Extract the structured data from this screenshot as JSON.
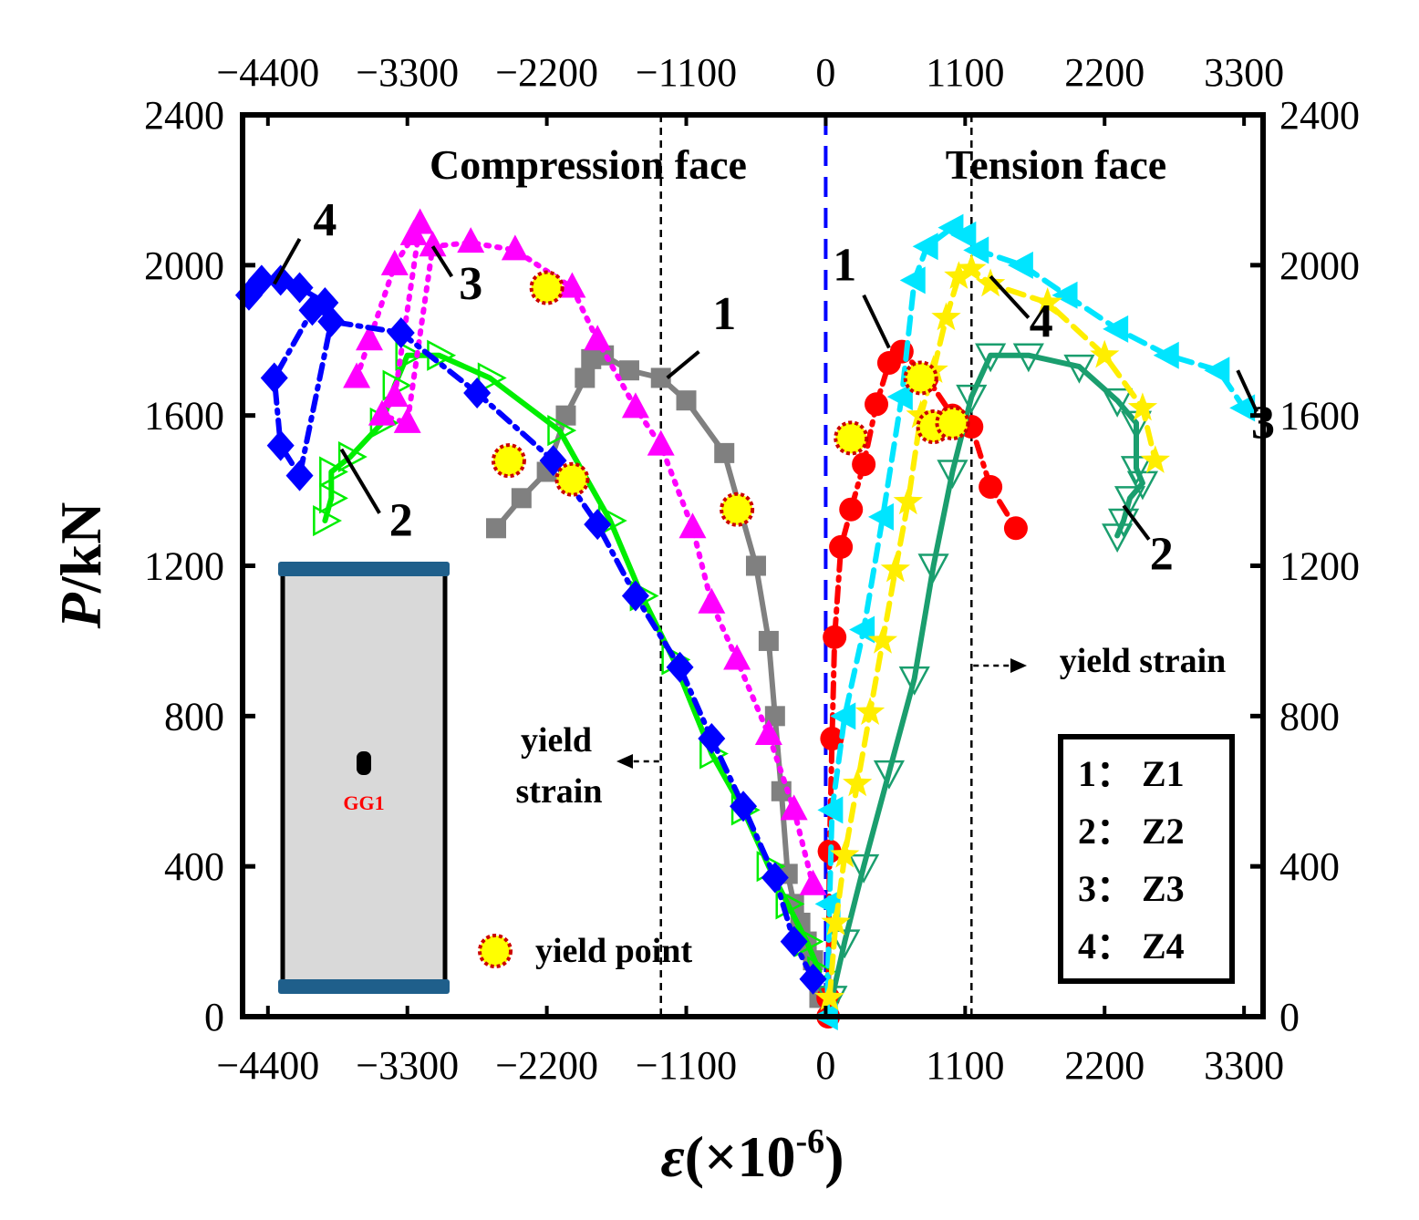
{
  "chart_data": {
    "type": "line",
    "xlabel": "ε(×10",
    "xlabel_exp": "-6",
    "xlabel_close": ")",
    "ylabel_italic": "P",
    "ylabel_rest": "/kN",
    "xlim": [
      -4600,
      3450
    ],
    "ylim": [
      0,
      2400
    ],
    "xticks": [
      -4400,
      -3300,
      -2200,
      -1100,
      0,
      1100,
      2200,
      3300
    ],
    "xtick_labels": [
      "−4400",
      "−3300",
      "−2200",
      "−1100",
      "0",
      "1100",
      "2200",
      "3300"
    ],
    "yticks": [
      0,
      400,
      800,
      1200,
      1600,
      2000,
      2400
    ],
    "ytick_labels": [
      "0",
      "400",
      "800",
      "1200",
      "1600",
      "2000",
      "2400"
    ],
    "region_labels": {
      "left": "Compression face",
      "right": "Tension face"
    },
    "yield_strain_left": -1300,
    "yield_strain_right": 1150,
    "yield_strain_text_right": "yield strain",
    "yield_strain_text_left": [
      "yield",
      "strain"
    ],
    "yield_point_label": "yield point",
    "legend": [
      "1：  Z1",
      "2：  Z2",
      "3：  Z3",
      "4：  Z4"
    ],
    "inset_label": "GG1",
    "colors": {
      "c1": "#808080",
      "t1": "#ff0000",
      "c2": "#00ee00",
      "t2": "#1a9e6e",
      "c3": "#ff00ff",
      "t3": "#00e5ff",
      "c4": "#0000ff",
      "t4": "#ffee00",
      "axis": "#000000",
      "zero_line": "#0000ff",
      "yield_fill": "#ffff00",
      "yield_edge": "#cc0000",
      "inset_fill": "#d9d9d9",
      "inset_plate": "#1f5f8b"
    },
    "series": [
      {
        "name": "Z1 compression",
        "id": "1",
        "color_key": "c1",
        "marker": "square",
        "dash": "solid",
        "x": [
          -2600,
          -2400,
          -2200,
          -2050,
          -1900,
          -1850,
          -1750,
          -1550,
          -1300,
          -1100,
          -800,
          -550,
          -450,
          -400,
          -350,
          -300,
          -250,
          -200,
          -150,
          -100,
          -50
        ],
        "y": [
          1300,
          1380,
          1450,
          1600,
          1700,
          1750,
          1760,
          1720,
          1700,
          1640,
          1500,
          1200,
          1000,
          800,
          600,
          380,
          300,
          250,
          200,
          150,
          50
        ]
      },
      {
        "name": "Z1 tension",
        "id": "1",
        "color_key": "t1",
        "marker": "circle",
        "dash": "dashdot",
        "x": [
          20,
          20,
          30,
          50,
          70,
          120,
          200,
          300,
          400,
          500,
          600,
          800,
          1000,
          1150,
          1300,
          1500
        ],
        "y": [
          0,
          50,
          440,
          740,
          1010,
          1250,
          1350,
          1470,
          1630,
          1740,
          1770,
          1700,
          1600,
          1570,
          1410,
          1300
        ]
      },
      {
        "name": "Z2 compression",
        "id": "2",
        "color_key": "c2",
        "marker": "tri-right-open",
        "dash": "solid",
        "x": [
          -3950,
          -3900,
          -3900,
          -3750,
          -3500,
          -3400,
          -3300,
          -3050,
          -2650,
          -2100,
          -1700,
          -1450,
          -1200,
          -900,
          -650,
          -450,
          -300,
          -150,
          -50
        ],
        "y": [
          1320,
          1380,
          1450,
          1490,
          1580,
          1680,
          1760,
          1760,
          1700,
          1560,
          1320,
          1120,
          950,
          700,
          550,
          400,
          300,
          200,
          120
        ]
      },
      {
        "name": "Z2 tension",
        "id": "2",
        "color_key": "t2",
        "marker": "tri-down-open",
        "dash": "solid",
        "x": [
          50,
          150,
          300,
          500,
          700,
          850,
          1000,
          1150,
          1300,
          1600,
          2000,
          2300,
          2450,
          2450,
          2500,
          2400,
          2350,
          2300
        ],
        "y": [
          50,
          200,
          400,
          650,
          900,
          1200,
          1450,
          1650,
          1760,
          1760,
          1730,
          1640,
          1580,
          1460,
          1420,
          1380,
          1320,
          1280
        ]
      },
      {
        "name": "Z3 compression",
        "id": "3",
        "color_key": "c3",
        "marker": "triangle",
        "dash": "dotted",
        "x": [
          -3700,
          -3600,
          -3400,
          -3250,
          -3200,
          -3400,
          -3500,
          -3300,
          -3100,
          -2800,
          -2450,
          -2000,
          -1800,
          -1500,
          -1300,
          -1050,
          -900,
          -700,
          -450,
          -250,
          -100
        ],
        "y": [
          1700,
          1800,
          2000,
          2080,
          2110,
          1650,
          1600,
          1580,
          2050,
          2060,
          2040,
          1940,
          1800,
          1620,
          1520,
          1300,
          1100,
          950,
          750,
          550,
          350
        ]
      },
      {
        "name": "Z3 tension",
        "id": "3",
        "color_key": "t3",
        "marker": "tri-left",
        "dash": "dashed",
        "x": [
          10,
          30,
          50,
          150,
          300,
          450,
          600,
          700,
          800,
          1000,
          1100,
          1200,
          1550,
          1900,
          2300,
          2700,
          3100,
          3300
        ],
        "y": [
          0,
          300,
          550,
          800,
          1030,
          1330,
          1650,
          1960,
          2050,
          2100,
          2080,
          2040,
          2000,
          1920,
          1830,
          1760,
          1720,
          1620
        ]
      },
      {
        "name": "Z4 compression",
        "id": "4",
        "color_key": "c4",
        "marker": "diamond",
        "dash": "dashdot",
        "x": [
          -4550,
          -4450,
          -4300,
          -4150,
          -3950,
          -4050,
          -4350,
          -4300,
          -4150,
          -3900,
          -3350,
          -2750,
          -2150,
          -1800,
          -1500,
          -1150,
          -900,
          -650,
          -400,
          -250,
          -100
        ],
        "y": [
          1920,
          1960,
          1960,
          1940,
          1900,
          1880,
          1700,
          1520,
          1440,
          1850,
          1820,
          1660,
          1480,
          1310,
          1120,
          930,
          740,
          560,
          370,
          200,
          100
        ]
      },
      {
        "name": "Z4 tension",
        "id": "4",
        "color_key": "t4",
        "marker": "star",
        "dash": "dashed",
        "x": [
          30,
          80,
          150,
          250,
          350,
          450,
          550,
          650,
          750,
          850,
          950,
          1050,
          1150,
          1300,
          1750,
          2200,
          2500,
          2600
        ],
        "y": [
          50,
          250,
          430,
          620,
          810,
          1000,
          1190,
          1370,
          1600,
          1720,
          1860,
          1970,
          1990,
          1950,
          1900,
          1760,
          1620,
          1480
        ]
      }
    ],
    "yield_points": {
      "x": [
        -2200,
        -2500,
        -2000,
        -700,
        200,
        750,
        850,
        1000
      ],
      "y": [
        1940,
        1480,
        1430,
        1350,
        1540,
        1700,
        1570,
        1580
      ]
    },
    "series_labels": [
      {
        "text": "1",
        "x": -800,
        "y": 1830,
        "lx1": -1000,
        "ly1": 1770,
        "lx2": -1250,
        "ly2": 1700
      },
      {
        "text": "2",
        "x": -3350,
        "y": 1280,
        "lx1": -3520,
        "ly1": 1340,
        "lx2": -3820,
        "ly2": 1510
      },
      {
        "text": "3",
        "x": -2800,
        "y": 1910,
        "lx1": -2950,
        "ly1": 1970,
        "lx2": -3100,
        "ly2": 2050
      },
      {
        "text": "4",
        "x": -3950,
        "y": 2080,
        "lx1": -4150,
        "ly1": 2070,
        "lx2": -4350,
        "ly2": 1950
      },
      {
        "text": "1",
        "x": 150,
        "y": 1960,
        "lx1": 300,
        "ly1": 1920,
        "lx2": 500,
        "ly2": 1780
      },
      {
        "text": "2",
        "x": 2650,
        "y": 1190,
        "lx1": 2550,
        "ly1": 1270,
        "lx2": 2350,
        "ly2": 1360
      },
      {
        "text": "3",
        "x": 3450,
        "y": 1540,
        "lx1": 3400,
        "ly1": 1610,
        "lx2": 3250,
        "ly2": 1720
      },
      {
        "text": "4",
        "x": 1700,
        "y": 1810,
        "lx1": 1600,
        "ly1": 1860,
        "lx2": 1300,
        "ly2": 1970
      }
    ]
  }
}
